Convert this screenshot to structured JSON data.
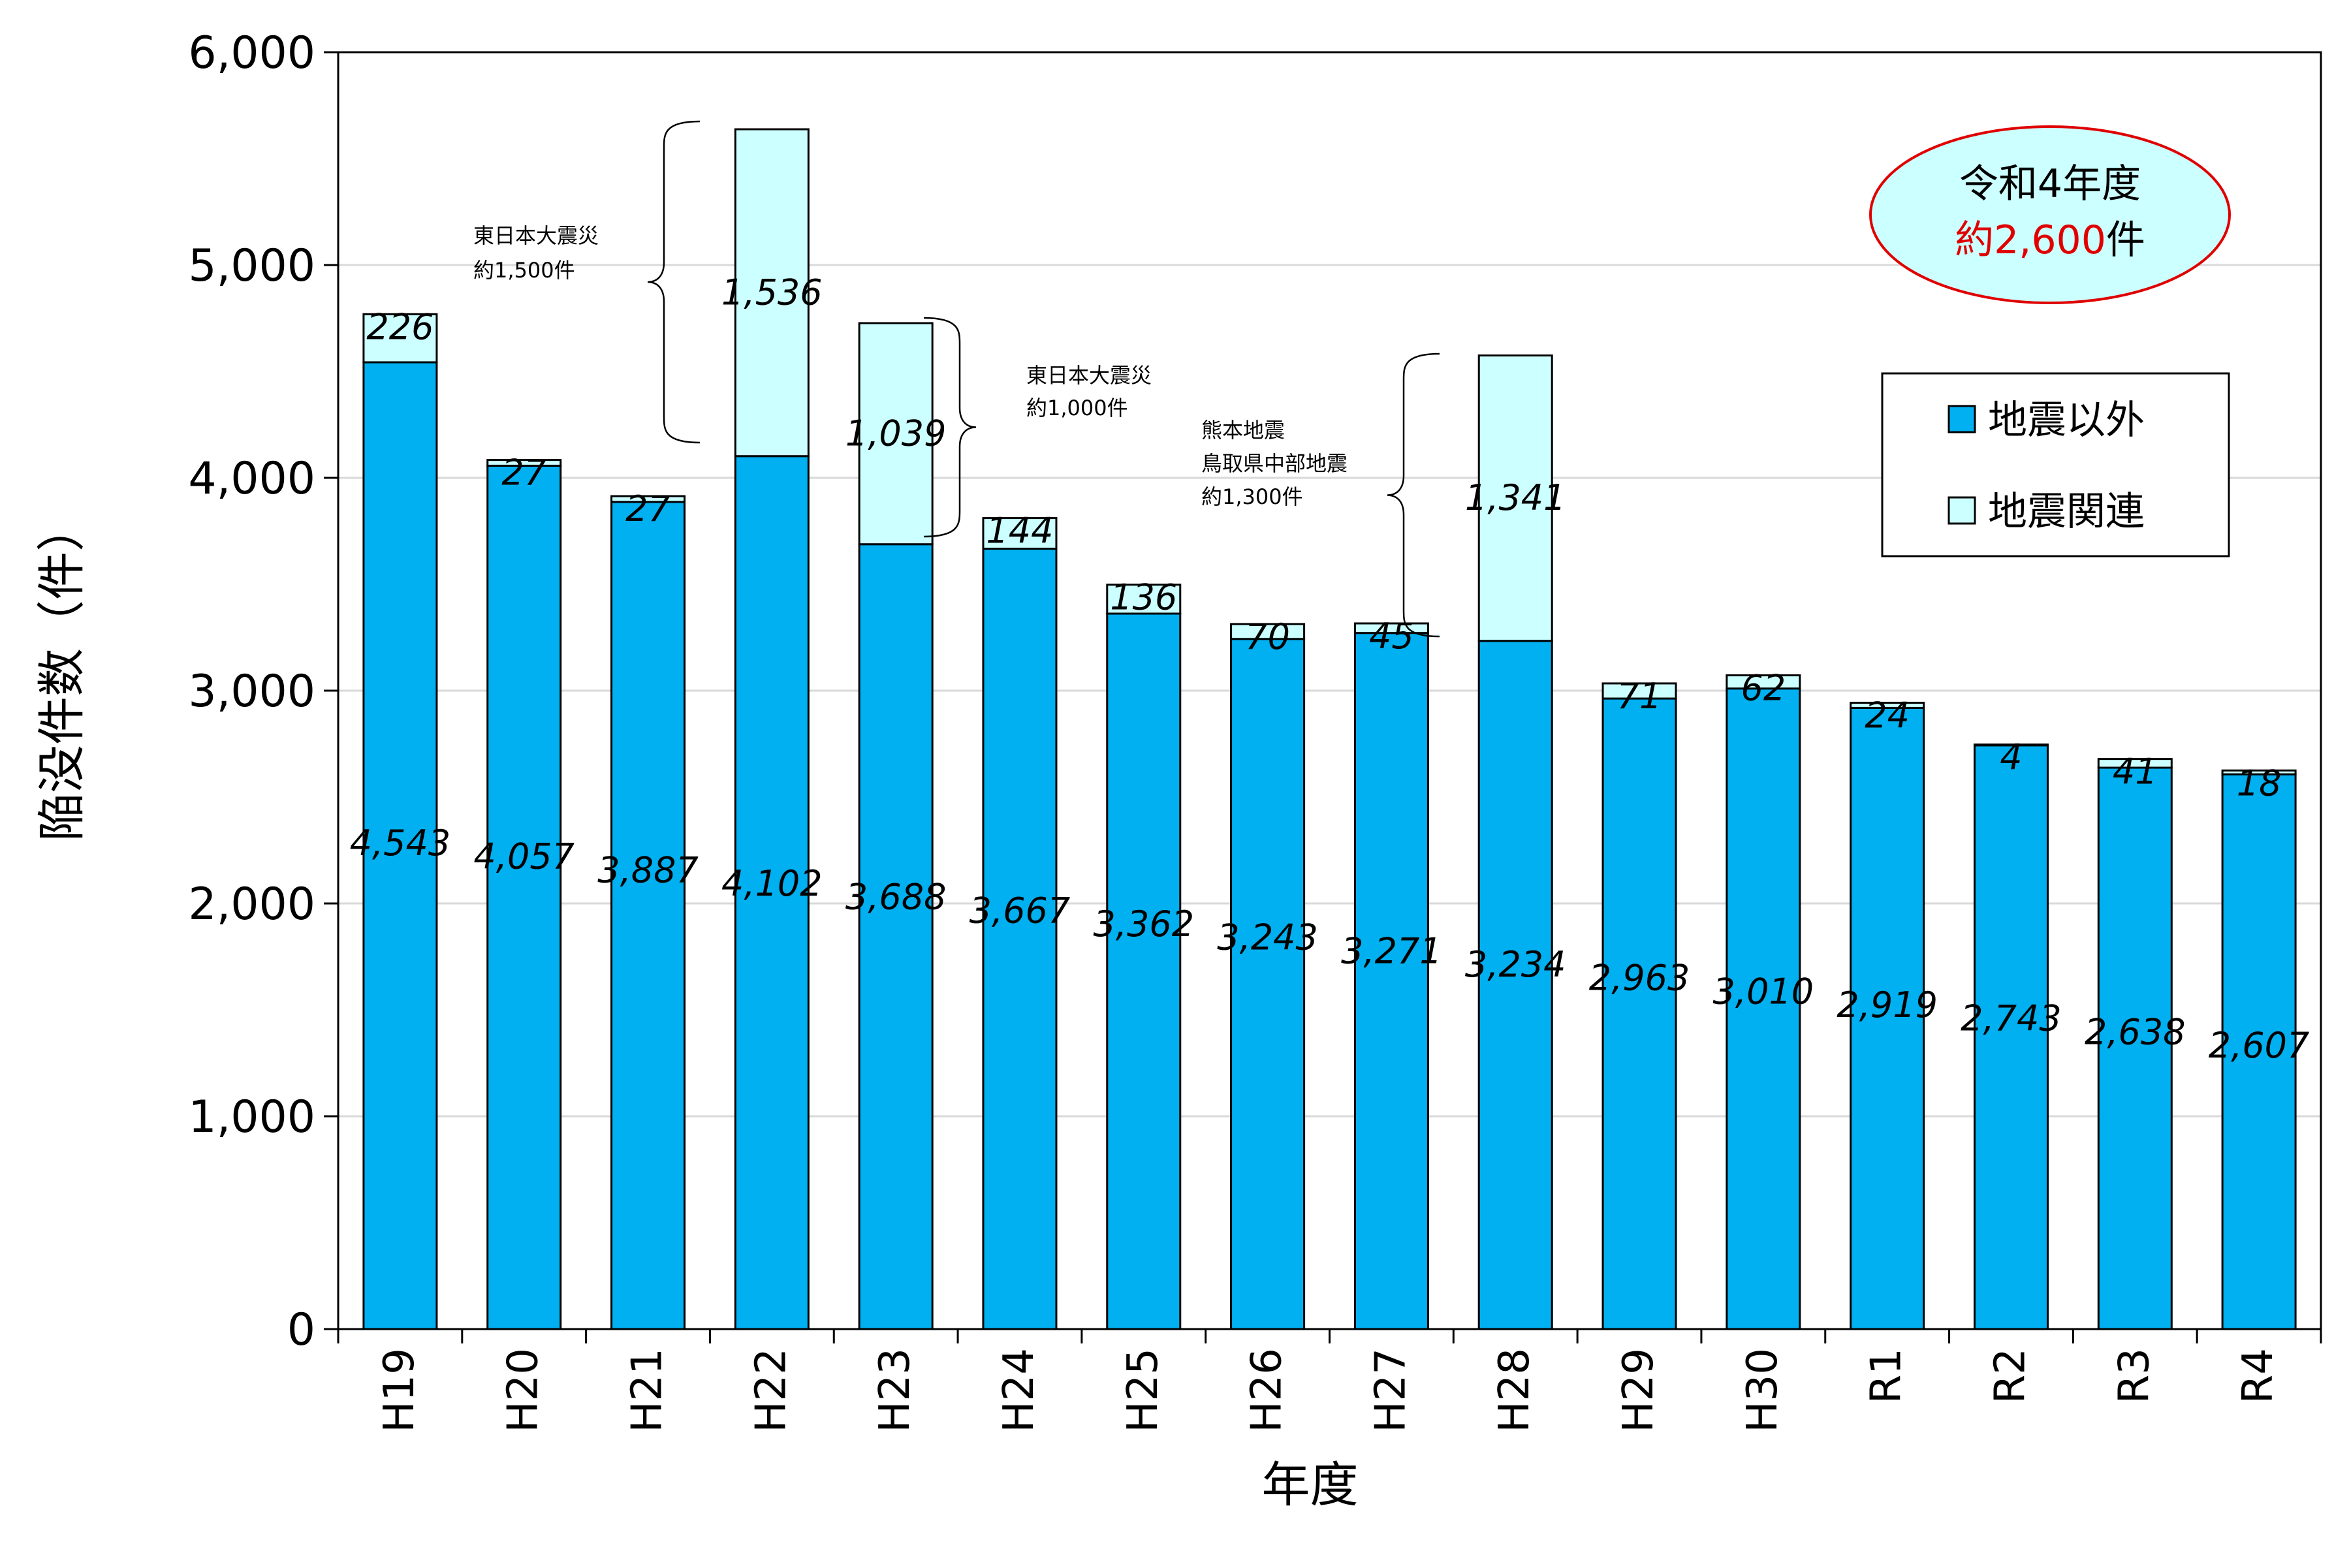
{
  "chart_data": {
    "type": "bar",
    "stacked": true,
    "categories": [
      "H19",
      "H20",
      "H21",
      "H22",
      "H23",
      "H24",
      "H25",
      "H26",
      "H27",
      "H28",
      "H29",
      "H30",
      "R1",
      "R2",
      "R3",
      "R4"
    ],
    "series": [
      {
        "name": "地震以外",
        "color": "#00b0f0",
        "values": [
          4543,
          4057,
          3887,
          4102,
          3688,
          3667,
          3362,
          3243,
          3271,
          3234,
          2963,
          3010,
          2919,
          2743,
          2638,
          2607
        ]
      },
      {
        "name": "地震関連",
        "color": "#ccffff",
        "values": [
          226,
          27,
          27,
          1536,
          1039,
          144,
          136,
          70,
          45,
          1341,
          71,
          62,
          24,
          4,
          41,
          18
        ]
      }
    ],
    "value_labels": {
      "other": [
        "4,543",
        "4,057",
        "3,887",
        "4,102",
        "3,688",
        "3,667",
        "3,362",
        "3,243",
        "3,271",
        "3,234",
        "2,963",
        "3,010",
        "2,919",
        "2,743",
        "2,638",
        "2,607"
      ],
      "quake": [
        "226",
        "27",
        "27",
        "1,536",
        "1,039",
        "144",
        "136",
        "70",
        "45",
        "1,341",
        "71",
        "62",
        "24",
        "4",
        "41",
        "18"
      ]
    },
    "ylim": [
      0,
      6000
    ],
    "yticks": [
      0,
      1000,
      2000,
      3000,
      4000,
      5000,
      6000
    ],
    "ytick_labels": [
      "0",
      "1,000",
      "2,000",
      "3,000",
      "4,000",
      "5,000",
      "6,000"
    ],
    "xlabel": "年度",
    "ylabel": "陥没件数（件）",
    "grid": "horizontal",
    "legend": {
      "placement": "top-right",
      "items": [
        "地震以外",
        "地震関連"
      ]
    },
    "annotations": [
      {
        "lines": [
          "東日本大震災",
          "約1,500件"
        ],
        "category": "H22"
      },
      {
        "lines": [
          "東日本大震災",
          "約1,000件"
        ],
        "category": "H23"
      },
      {
        "lines": [
          "熊本地震",
          "鳥取県中部地震",
          "約1,300件"
        ],
        "category": "H28"
      }
    ],
    "callout": {
      "line1": "令和4年度",
      "line2_red": "約2,600",
      "line2_suffix": "件",
      "fill": "#ccffff",
      "border": "#e00000"
    }
  }
}
